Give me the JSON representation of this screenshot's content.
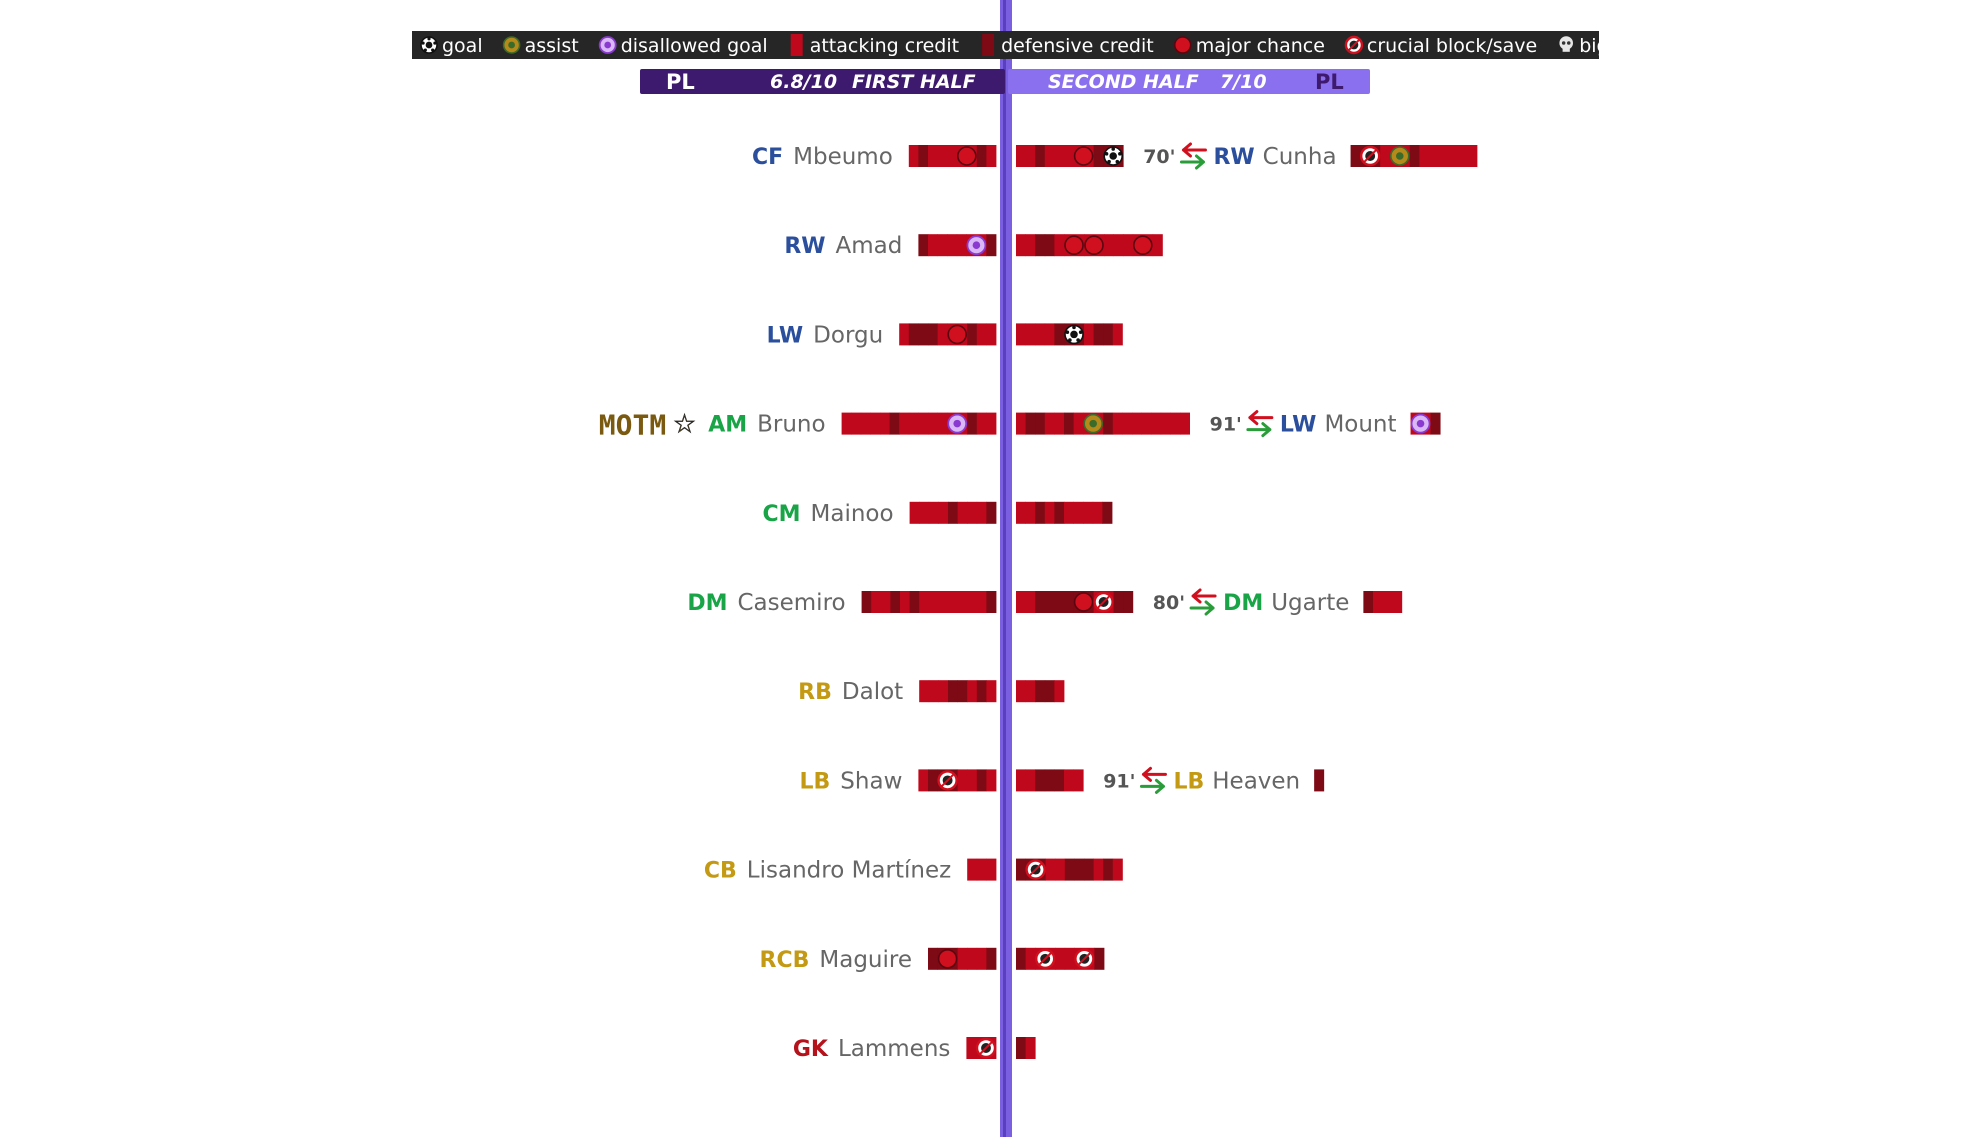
{
  "colors": {
    "attack": "#c0081c",
    "defense": "#7d0a14",
    "divider": "#7a5fe0",
    "header_left": "#3d1a6e",
    "header_right": "#8a70ee",
    "pos_attack": "#2b4f9c",
    "pos_mid": "#19a447",
    "pos_def": "#c49a14",
    "pos_gk": "#b5121b"
  },
  "legend": [
    {
      "icon": "goal",
      "label": "goal"
    },
    {
      "icon": "assist",
      "label": "assist"
    },
    {
      "icon": "disallowed",
      "label": "disallowed goal"
    },
    {
      "icon": "attack-swatch",
      "label": "attacking credit"
    },
    {
      "icon": "defense-swatch",
      "label": "defensive credit"
    },
    {
      "icon": "chance",
      "label": "major chance"
    },
    {
      "icon": "block",
      "label": "crucial block/save"
    },
    {
      "icon": "skull",
      "label": "big error"
    }
  ],
  "header": {
    "left_pl": "PL",
    "left_rating": "6.8/10",
    "left_label": "FIRST HALF",
    "right_label": "SECOND HALF",
    "right_rating": "7/10",
    "right_pl": "PL"
  },
  "motm": {
    "label": "MOTM",
    "star": "☆"
  },
  "chart_data": {
    "type": "bar",
    "units": "credit segments per half",
    "rows": [
      {
        "pos": "CF",
        "group": "attack",
        "name": "Mbeumo",
        "first": [
          "A",
          "D",
          "A",
          "A",
          "A",
          "chance",
          "D",
          "A"
        ],
        "second": [
          "A",
          "A",
          "D",
          "A",
          "A",
          "A",
          "chance",
          "D",
          "goal"
        ],
        "sub": {
          "time": "70'",
          "pos": "RW",
          "group": "attack",
          "name": "Cunha",
          "bar": [
            "D",
            "block",
            "A",
            "assist",
            "D",
            "A",
            "A",
            "A",
            "A",
            "A",
            "A"
          ]
        }
      },
      {
        "pos": "RW",
        "group": "attack",
        "name": "Amad",
        "first": [
          "D",
          "A",
          "A",
          "A",
          "A",
          "disallowed",
          "D"
        ],
        "second": [
          "A",
          "A",
          "D",
          "D",
          "A",
          "chance",
          "chance",
          "A",
          "A",
          "A",
          "chance",
          "A"
        ]
      },
      {
        "pos": "LW",
        "group": "attack",
        "name": "Dorgu",
        "first": [
          "A",
          "D",
          "D",
          "D",
          "A",
          "chance",
          "D",
          "A",
          "A"
        ],
        "second": [
          "A",
          "A",
          "A",
          "A",
          "D",
          "goal",
          "A",
          "D",
          "D",
          "A"
        ]
      },
      {
        "pos": "AM",
        "group": "mid",
        "name": "Bruno",
        "motm": true,
        "first": [
          "A",
          "A",
          "A",
          "A",
          "A",
          "D",
          "A",
          "A",
          "A",
          "A",
          "A",
          "disallowed",
          "D",
          "A",
          "A"
        ],
        "second": [
          "A",
          "D",
          "D",
          "A",
          "A",
          "D",
          "A",
          "assist",
          "D",
          "A",
          "A",
          "A",
          "A",
          "A",
          "A",
          "A",
          "A"
        ],
        "sub": {
          "time": "91'",
          "pos": "LW",
          "group": "attack",
          "name": "Mount",
          "bar": [
            "disallowed",
            "D"
          ]
        }
      },
      {
        "pos": "CM",
        "group": "mid",
        "name": "Mainoo",
        "first": [
          "A",
          "A",
          "A",
          "A",
          "D",
          "A",
          "A",
          "A",
          "D"
        ],
        "second": [
          "A",
          "A",
          "D",
          "A",
          "D",
          "A",
          "A",
          "A",
          "A",
          "D"
        ]
      },
      {
        "pos": "DM",
        "group": "mid",
        "name": "Casemiro",
        "first": [
          "D",
          "A",
          "A",
          "D",
          "A",
          "D",
          "A",
          "A",
          "A",
          "A",
          "A",
          "A",
          "A",
          "D"
        ],
        "second": [
          "A",
          "A",
          "D",
          "D",
          "D",
          "D",
          "chance",
          "block",
          "D",
          "D"
        ],
        "sub": {
          "time": "80'",
          "pos": "DM",
          "group": "mid",
          "name": "Ugarte",
          "bar": [
            "D",
            "A",
            "A",
            "A"
          ]
        }
      },
      {
        "pos": "RB",
        "group": "def",
        "name": "Dalot",
        "first": [
          "A",
          "A",
          "A",
          "D",
          "D",
          "A",
          "D",
          "A"
        ],
        "second": [
          "A",
          "A",
          "D",
          "D",
          "A"
        ]
      },
      {
        "pos": "LB",
        "group": "def",
        "name": "Shaw",
        "first": [
          "A",
          "D",
          "block",
          "A",
          "A",
          "D",
          "A"
        ],
        "second": [
          "A",
          "A",
          "D",
          "D",
          "D",
          "A",
          "A"
        ],
        "sub": {
          "time": "91'",
          "pos": "LB",
          "group": "def",
          "name": "Heaven",
          "bar": [
            "D"
          ]
        }
      },
      {
        "pos": "CB",
        "group": "def",
        "name": "Lisandro Martínez",
        "first": [
          "A",
          "A",
          "A"
        ],
        "second": [
          "D",
          "block",
          "A",
          "A",
          "D",
          "D",
          "D",
          "A",
          "D",
          "A"
        ]
      },
      {
        "pos": "RCB",
        "group": "def",
        "name": "Maguire",
        "first": [
          "D",
          "chance",
          "A",
          "A",
          "A",
          "D"
        ],
        "second": [
          "D",
          "A",
          "block",
          "A",
          "A",
          "block",
          "D"
        ]
      },
      {
        "pos": "GK",
        "group": "gk",
        "name": "Lammens",
        "first": [
          "A",
          "block"
        ],
        "second": [
          "D",
          "A"
        ]
      }
    ]
  }
}
